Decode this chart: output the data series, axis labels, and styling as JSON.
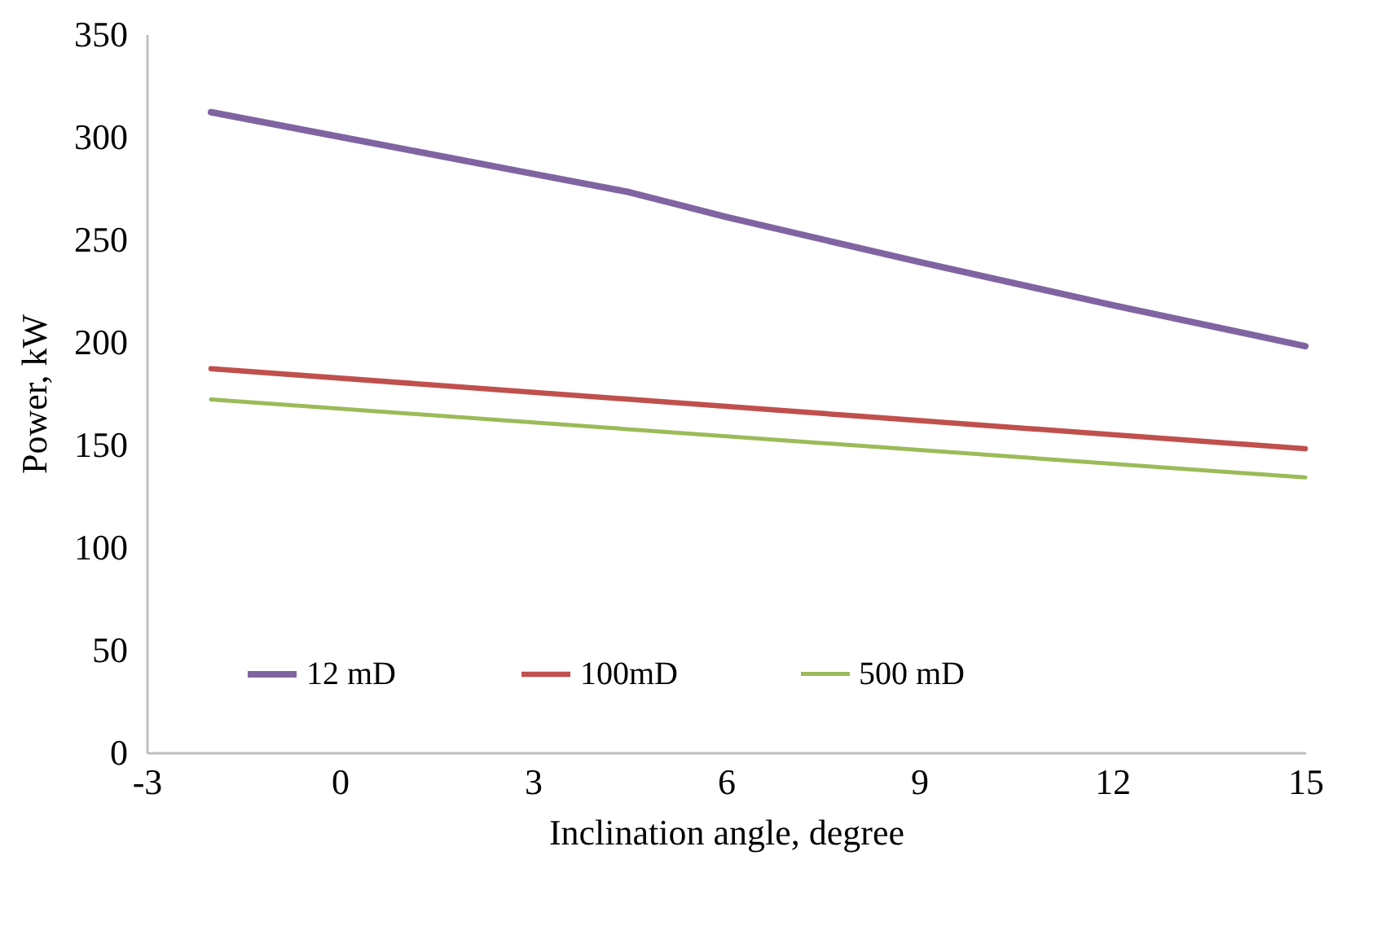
{
  "chart_data": {
    "type": "line",
    "xlabel": "Inclination angle, degree",
    "ylabel": "Power, kW",
    "xlim": [
      -3,
      15
    ],
    "xticks": [
      -3,
      0,
      3,
      6,
      9,
      12,
      15
    ],
    "ylim": [
      0,
      350
    ],
    "yticks": [
      0,
      50,
      100,
      150,
      200,
      250,
      300,
      350
    ],
    "grid": false,
    "legend": "bottom",
    "marker": "none",
    "line_style": "solid",
    "series": [
      {
        "name": "12 mD",
        "color": "#8064a2",
        "x": [
          -2,
          0,
          3,
          4.5,
          6,
          9,
          12,
          15
        ],
        "values": [
          312,
          300,
          282,
          273,
          261,
          239,
          218,
          198
        ]
      },
      {
        "name": "100mD",
        "color": "#c0504d",
        "x": [
          -2,
          15
        ],
        "values": [
          187,
          148
        ]
      },
      {
        "name": "500 mD",
        "color": "#9bbb59",
        "x": [
          -2,
          15
        ],
        "values": [
          172,
          134
        ]
      }
    ]
  }
}
